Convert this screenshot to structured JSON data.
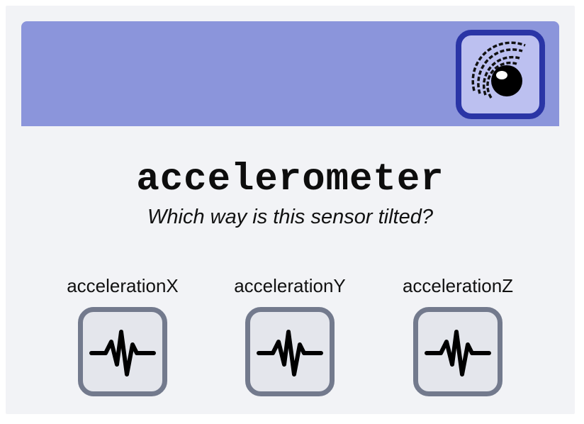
{
  "header": {
    "sensor_icon": "accelerometer-sensor-icon",
    "band_color": "#8b95db",
    "tile_border_color": "#2a35a6"
  },
  "main": {
    "title": "accelerometer",
    "subtitle": "Which way is this sensor tilted?"
  },
  "blocks": [
    {
      "label": "accelerationX",
      "icon": "waveform-icon"
    },
    {
      "label": "accelerationY",
      "icon": "waveform-icon"
    },
    {
      "label": "accelerationZ",
      "icon": "waveform-icon"
    }
  ]
}
